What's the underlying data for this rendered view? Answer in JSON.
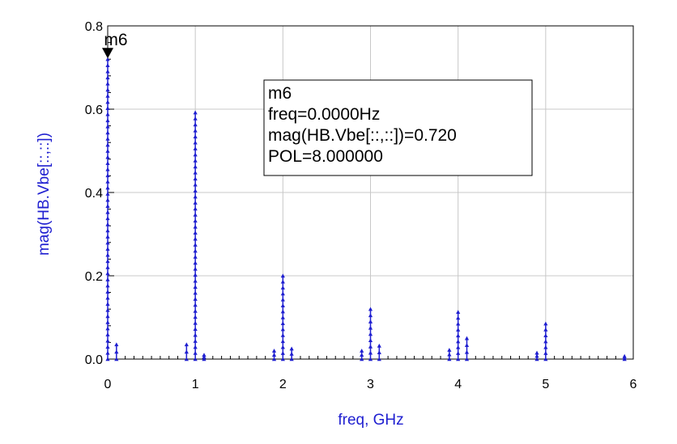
{
  "chart_data": {
    "type": "scatter",
    "xlabel": "freq, GHz",
    "ylabel": "mag(HB.Vbe[::,::])",
    "xlim": [
      0,
      6
    ],
    "ylim": [
      0,
      0.8
    ],
    "xticks": [
      "0",
      "1",
      "2",
      "3",
      "4",
      "5",
      "6"
    ],
    "yticks": [
      "0.0",
      "0.2",
      "0.4",
      "0.6",
      "0.8"
    ],
    "grid": true,
    "series_color": "#1f1fd0",
    "spectral_lines": [
      {
        "x": 0.0,
        "peak": 0.72
      },
      {
        "x": 0.1,
        "peak": 0.035
      },
      {
        "x": 0.9,
        "peak": 0.035
      },
      {
        "x": 1.0,
        "peak": 0.592
      },
      {
        "x": 1.1,
        "peak": 0.01
      },
      {
        "x": 1.9,
        "peak": 0.02
      },
      {
        "x": 2.0,
        "peak": 0.2
      },
      {
        "x": 2.1,
        "peak": 0.025
      },
      {
        "x": 2.9,
        "peak": 0.02
      },
      {
        "x": 3.0,
        "peak": 0.12
      },
      {
        "x": 3.1,
        "peak": 0.032
      },
      {
        "x": 3.9,
        "peak": 0.022
      },
      {
        "x": 4.0,
        "peak": 0.113
      },
      {
        "x": 4.1,
        "peak": 0.05
      },
      {
        "x": 4.9,
        "peak": 0.015
      },
      {
        "x": 5.0,
        "peak": 0.085
      },
      {
        "x": 5.9,
        "peak": 0.007
      }
    ],
    "marker": {
      "name": "m6",
      "x": 0.0,
      "y": 0.72,
      "readout": [
        "m6",
        "freq=0.0000Hz",
        "mag(HB.Vbe[::,::])=0.720",
        "POL=8.000000"
      ]
    }
  }
}
